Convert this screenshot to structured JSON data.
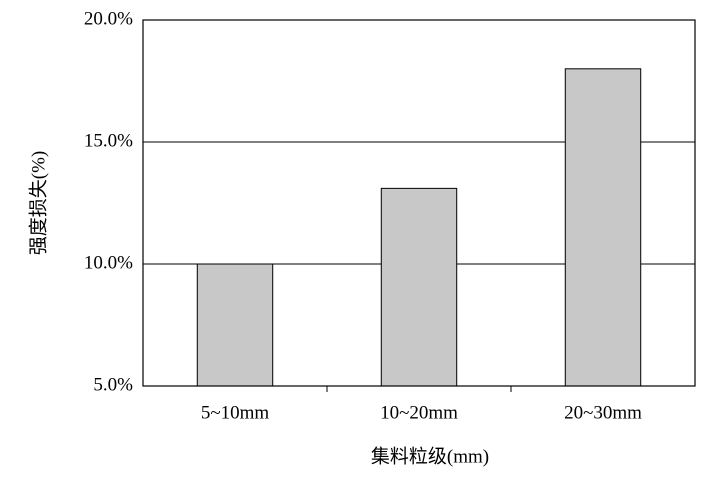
{
  "chart_data": {
    "type": "bar",
    "x_label": "集料粒级(mm)",
    "y_label": "强度损失(%)",
    "categories": [
      "5~10mm",
      "10~20mm",
      "20~30mm"
    ],
    "values": [
      10.0,
      13.1,
      18.0
    ],
    "color": "#c8c8c8",
    "ylim": [
      5,
      20
    ],
    "yticks": [
      {
        "value": 5,
        "label": "5.0%"
      },
      {
        "value": 10,
        "label": "10.0%"
      },
      {
        "value": 15,
        "label": "15.0%"
      },
      {
        "value": 20,
        "label": "20.0%"
      }
    ],
    "grid": true
  }
}
